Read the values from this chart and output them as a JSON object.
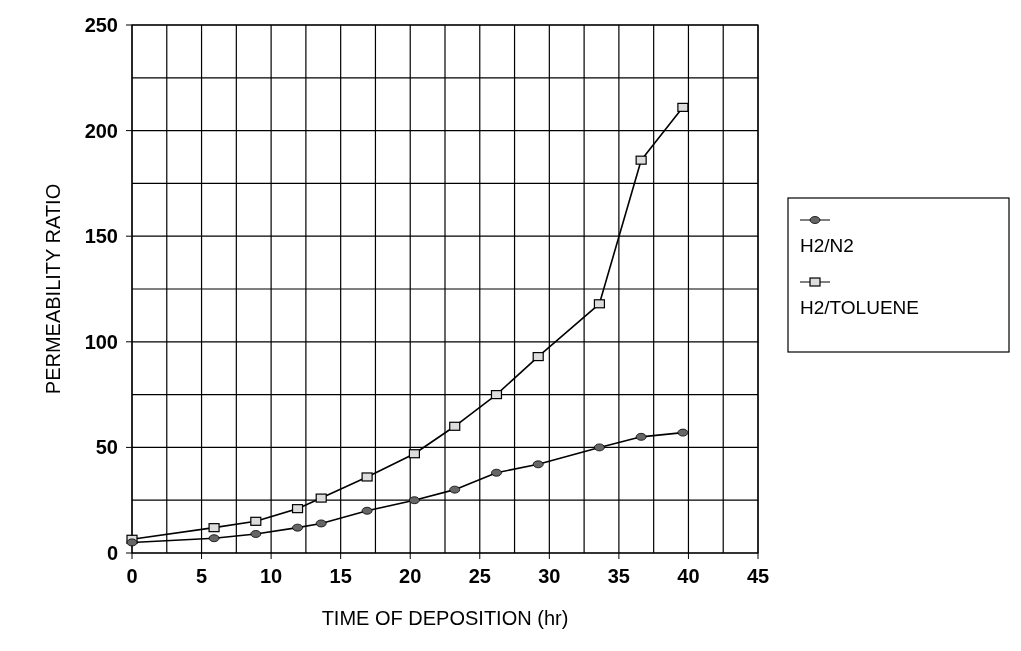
{
  "chart_data": {
    "type": "line",
    "xlabel": "TIME OF DEPOSITION (hr)",
    "ylabel": "PERMEABILITY RATIO",
    "xlim": [
      0,
      45
    ],
    "xticks": [
      0,
      5,
      10,
      15,
      20,
      25,
      30,
      35,
      40,
      45
    ],
    "ylim": [
      0,
      250
    ],
    "yticks": [
      0,
      50,
      100,
      150,
      200,
      250
    ],
    "grid": true,
    "legend": "right",
    "series": [
      {
        "name": "H2/N2",
        "color": "#000000",
        "marker": "circle",
        "x": [
          0,
          5.9,
          8.9,
          11.9,
          13.6,
          16.9,
          20.3,
          23.2,
          26.2,
          29.2,
          33.6,
          36.6,
          39.6
        ],
        "values": [
          5,
          7,
          9,
          12,
          14,
          20,
          25,
          30,
          38,
          42,
          50,
          55,
          57
        ]
      },
      {
        "name": "H2/TOLUENE",
        "color": "#000000",
        "marker": "square",
        "x": [
          0,
          5.9,
          8.9,
          11.9,
          13.6,
          16.9,
          20.3,
          23.2,
          26.2,
          29.2,
          33.6,
          36.6,
          39.6
        ],
        "values": [
          6.5,
          12,
          15,
          21,
          26,
          36,
          47,
          60,
          75,
          93,
          118,
          186,
          211
        ]
      }
    ]
  }
}
